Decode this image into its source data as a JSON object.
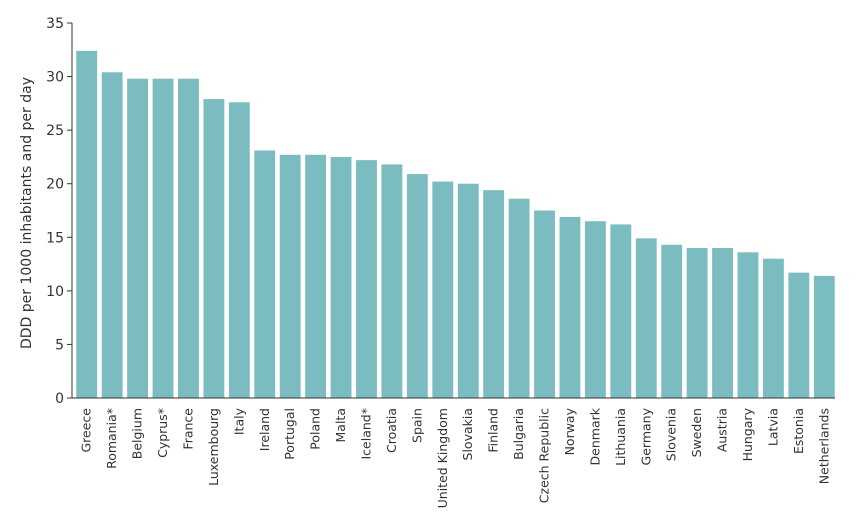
{
  "chart_data": {
    "type": "bar",
    "ylabel": "DDD per 1000 inhabitants and per day",
    "xlabel": "",
    "ylim": [
      0,
      35
    ],
    "yticks": [
      0,
      5,
      10,
      15,
      20,
      25,
      30,
      35
    ],
    "grid": false,
    "bar_color": "#7bbcc0",
    "axis_color": "#333333",
    "categories": [
      "Greece",
      "Romania*",
      "Belgium",
      "Cyprus*",
      "France",
      "Luxembourg",
      "Italy",
      "Ireland",
      "Portugal",
      "Poland",
      "Malta",
      "Iceland*",
      "Croatia",
      "Spain",
      "United Kingdom",
      "Slovakia",
      "Finland",
      "Bulgaria",
      "Czech Republic",
      "Norway",
      "Denmark",
      "Lithuania",
      "Germany",
      "Slovenia",
      "Sweden",
      "Austria",
      "Hungary",
      "Latvia",
      "Estonia",
      "Netherlands"
    ],
    "values": [
      32.4,
      30.4,
      29.8,
      29.8,
      29.8,
      27.9,
      27.6,
      23.1,
      22.7,
      22.7,
      22.5,
      22.2,
      21.8,
      20.9,
      20.2,
      20.0,
      19.4,
      18.6,
      17.5,
      16.9,
      16.5,
      16.2,
      14.9,
      14.3,
      14.0,
      14.0,
      13.6,
      13.0,
      11.7,
      11.4
    ]
  }
}
